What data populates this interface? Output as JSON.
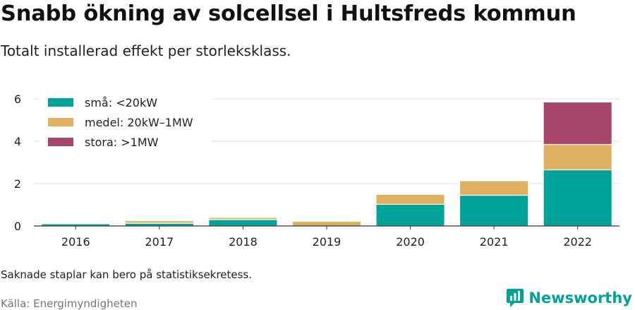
{
  "title": "Snabb ökning av solcellsel i Hultsfreds kommun",
  "subtitle": "Totalt installerad effekt per storleksklass.",
  "note": "Saknade staplar kan bero på statistiksekretess.",
  "source": "Källa: Energimyndigheten",
  "brand": {
    "name": "Newsworthy",
    "icon": "chart-bubble-icon",
    "color": "#00a39a"
  },
  "chart_data": {
    "type": "bar",
    "stacked": true,
    "categories": [
      "2016",
      "2017",
      "2018",
      "2019",
      "2020",
      "2021",
      "2022"
    ],
    "series": [
      {
        "name": "små: <20kW",
        "color": "#00a39a",
        "values": [
          0.1,
          0.13,
          0.3,
          0,
          1.02,
          1.45,
          2.65
        ]
      },
      {
        "name": "medel: 20kW–1MW",
        "color": "#e0b161",
        "values": [
          0,
          0.12,
          0.1,
          0.22,
          0.47,
          0.68,
          1.2
        ]
      },
      {
        "name": "stora: >1MW",
        "color": "#a8456a",
        "values": [
          0,
          0,
          0,
          0,
          0,
          0,
          2.0
        ]
      }
    ],
    "y_ticks": [
      0,
      2,
      4,
      6
    ],
    "ylim": [
      0,
      6.1
    ],
    "grid": true,
    "legend_position": "top-left"
  }
}
